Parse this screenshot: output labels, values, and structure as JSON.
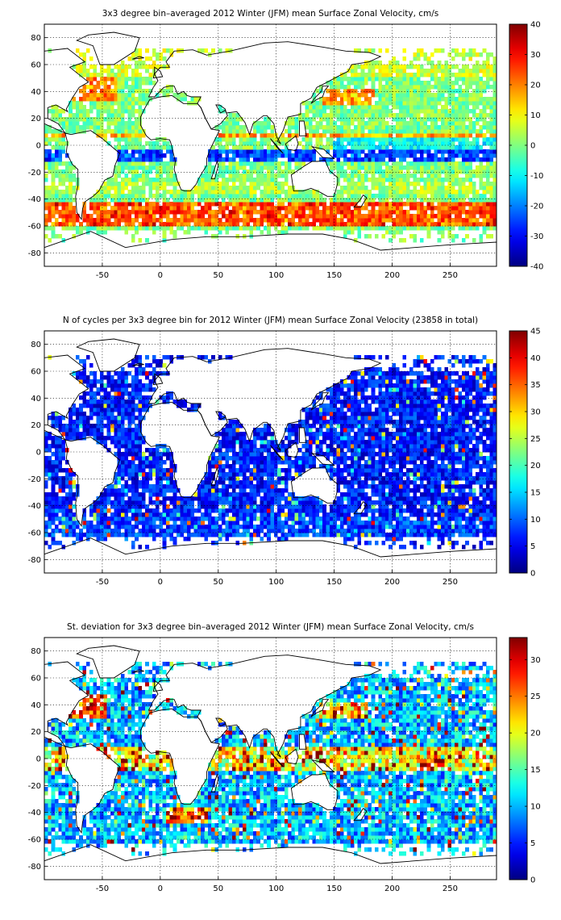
{
  "chart_data": [
    {
      "type": "heatmap",
      "title": "3x3 degree bin–averaged 2012 Winter (JFM) mean Surface Zonal Velocity, cm/s",
      "x_ticks": [
        "-50",
        "0",
        "50",
        "100",
        "150",
        "200",
        "250"
      ],
      "y_ticks": [
        "80",
        "60",
        "40",
        "20",
        "0",
        "-20",
        "-40",
        "-60",
        "-80"
      ],
      "xlim": [
        -100,
        290
      ],
      "ylim": [
        -90,
        90
      ],
      "grid": true,
      "bin_size_deg": 3,
      "colormap": "jet",
      "colorbar": {
        "min": -40,
        "max": 40,
        "ticks": [
          "40",
          "30",
          "20",
          "10",
          "0",
          "-10",
          "-20",
          "-30",
          "-40"
        ]
      },
      "field_description": "zonal velocity: strong eastward (red) along Southern Ocean ~45–60S and Gulf Stream, westward (blue) in equatorial band"
    },
    {
      "type": "heatmap",
      "title": "N of cycles per 3x3 degree bin for 2012 Winter (JFM) mean Surface Zonal Velocity (23858 in total)",
      "x_ticks": [
        "-50",
        "0",
        "50",
        "100",
        "150",
        "200",
        "250"
      ],
      "y_ticks": [
        "80",
        "60",
        "40",
        "20",
        "0",
        "-20",
        "-40",
        "-60",
        "-80"
      ],
      "xlim": [
        -100,
        290
      ],
      "ylim": [
        -90,
        90
      ],
      "grid": true,
      "bin_size_deg": 3,
      "colormap": "jet",
      "colorbar": {
        "min": 0,
        "max": 45,
        "ticks": [
          "45",
          "40",
          "35",
          "30",
          "25",
          "20",
          "15",
          "10",
          "5",
          "0"
        ]
      },
      "field_description": "sample counts mostly low (blue, 0–15) with sparse higher counts"
    },
    {
      "type": "heatmap",
      "title": "St. deviation for 3x3 degree bin–averaged 2012 Winter (JFM) mean Surface Zonal Velocity, cm/s",
      "x_ticks": [
        "-50",
        "0",
        "50",
        "100",
        "150",
        "200",
        "250"
      ],
      "y_ticks": [
        "80",
        "60",
        "40",
        "20",
        "0",
        "-20",
        "-40",
        "-60",
        "-80"
      ],
      "xlim": [
        -100,
        290
      ],
      "ylim": [
        -90,
        90
      ],
      "grid": true,
      "bin_size_deg": 3,
      "colormap": "jet",
      "colorbar": {
        "min": 0,
        "max": 33,
        "ticks": [
          "30",
          "25",
          "20",
          "15",
          "10",
          "5",
          "0"
        ]
      },
      "field_description": "standard deviation: high (red) in Gulf Stream, Kuroshio, Agulhas and equatorial Pacific"
    }
  ]
}
